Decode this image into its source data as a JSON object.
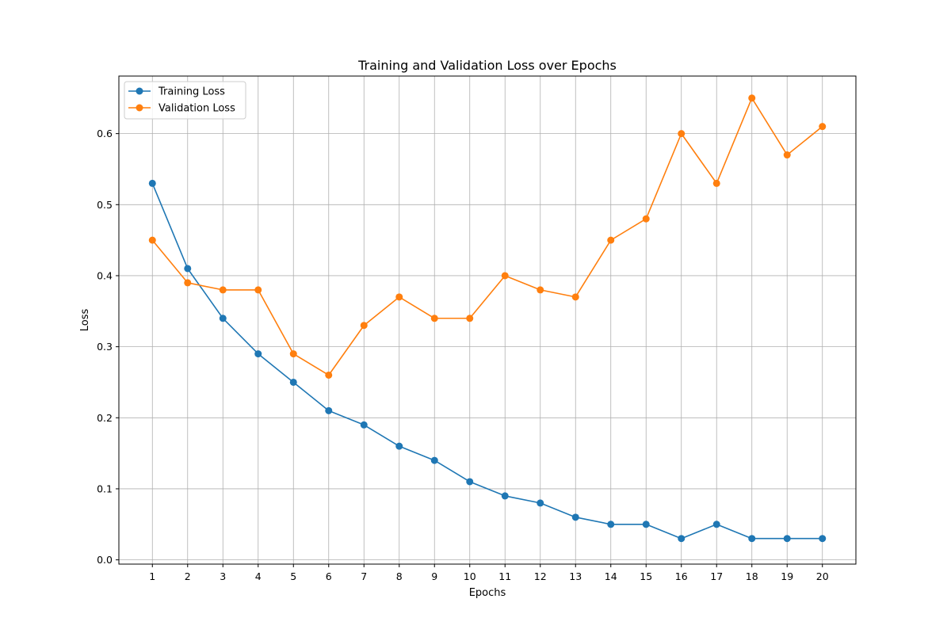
{
  "chart_data": {
    "type": "line",
    "title": "Training and Validation Loss over Epochs",
    "xlabel": "Epochs",
    "ylabel": "Loss",
    "x": [
      1,
      2,
      3,
      4,
      5,
      6,
      7,
      8,
      9,
      10,
      11,
      12,
      13,
      14,
      15,
      16,
      17,
      18,
      19,
      20
    ],
    "xticks": [
      "1",
      "2",
      "3",
      "4",
      "5",
      "6",
      "7",
      "8",
      "9",
      "10",
      "11",
      "12",
      "13",
      "14",
      "15",
      "16",
      "17",
      "18",
      "19",
      "20"
    ],
    "yticks": [
      "0.0",
      "0.1",
      "0.2",
      "0.3",
      "0.4",
      "0.5",
      "0.6"
    ],
    "xlim": [
      0.05,
      20.95
    ],
    "ylim": [
      -0.006,
      0.681
    ],
    "grid": true,
    "legend_position": "top-left",
    "series": [
      {
        "name": "Training Loss",
        "color": "#1f77b4",
        "marker": "circle",
        "values": [
          0.53,
          0.41,
          0.34,
          0.29,
          0.25,
          0.21,
          0.19,
          0.16,
          0.14,
          0.11,
          0.09,
          0.08,
          0.06,
          0.05,
          0.05,
          0.03,
          0.05,
          0.03,
          0.03,
          0.03
        ]
      },
      {
        "name": "Validation Loss",
        "color": "#ff7f0e",
        "marker": "circle",
        "values": [
          0.45,
          0.39,
          0.38,
          0.38,
          0.29,
          0.26,
          0.33,
          0.37,
          0.34,
          0.34,
          0.4,
          0.38,
          0.37,
          0.45,
          0.48,
          0.6,
          0.53,
          0.65,
          0.57,
          0.61
        ]
      }
    ]
  }
}
